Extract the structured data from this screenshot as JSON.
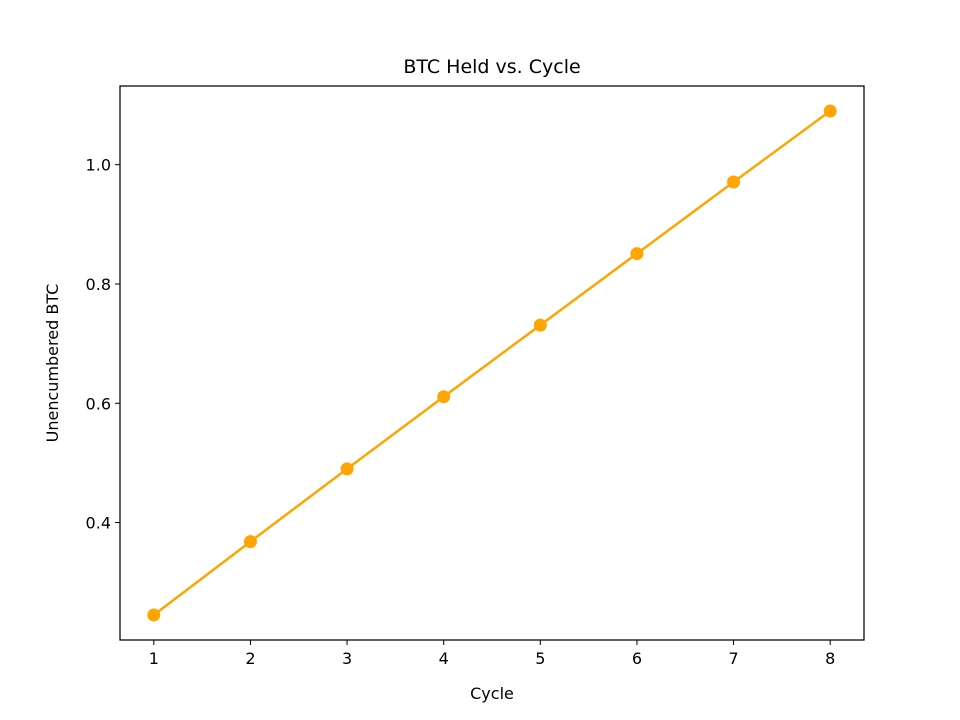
{
  "chart_data": {
    "type": "line",
    "title": "BTC Held vs. Cycle",
    "xlabel": "Cycle",
    "ylabel": "Unencumbered BTC",
    "x": [
      1,
      2,
      3,
      4,
      5,
      6,
      7,
      8
    ],
    "series": [
      {
        "values": [
          0.245,
          0.368,
          0.49,
          0.611,
          0.731,
          0.851,
          0.971,
          1.09
        ],
        "color": "#ffa500"
      }
    ],
    "xticks": [
      1,
      2,
      3,
      4,
      5,
      6,
      7,
      8
    ],
    "xtick_labels": [
      "1",
      "2",
      "3",
      "4",
      "5",
      "6",
      "7",
      "8"
    ],
    "yticks": [
      0.4,
      0.6,
      0.8,
      1.0
    ],
    "ytick_labels": [
      "0.4",
      "0.6",
      "0.8",
      "1.0"
    ],
    "xlim": [
      0.65,
      8.35
    ],
    "ylim": [
      0.203,
      1.132
    ],
    "grid": false,
    "legend": false
  }
}
